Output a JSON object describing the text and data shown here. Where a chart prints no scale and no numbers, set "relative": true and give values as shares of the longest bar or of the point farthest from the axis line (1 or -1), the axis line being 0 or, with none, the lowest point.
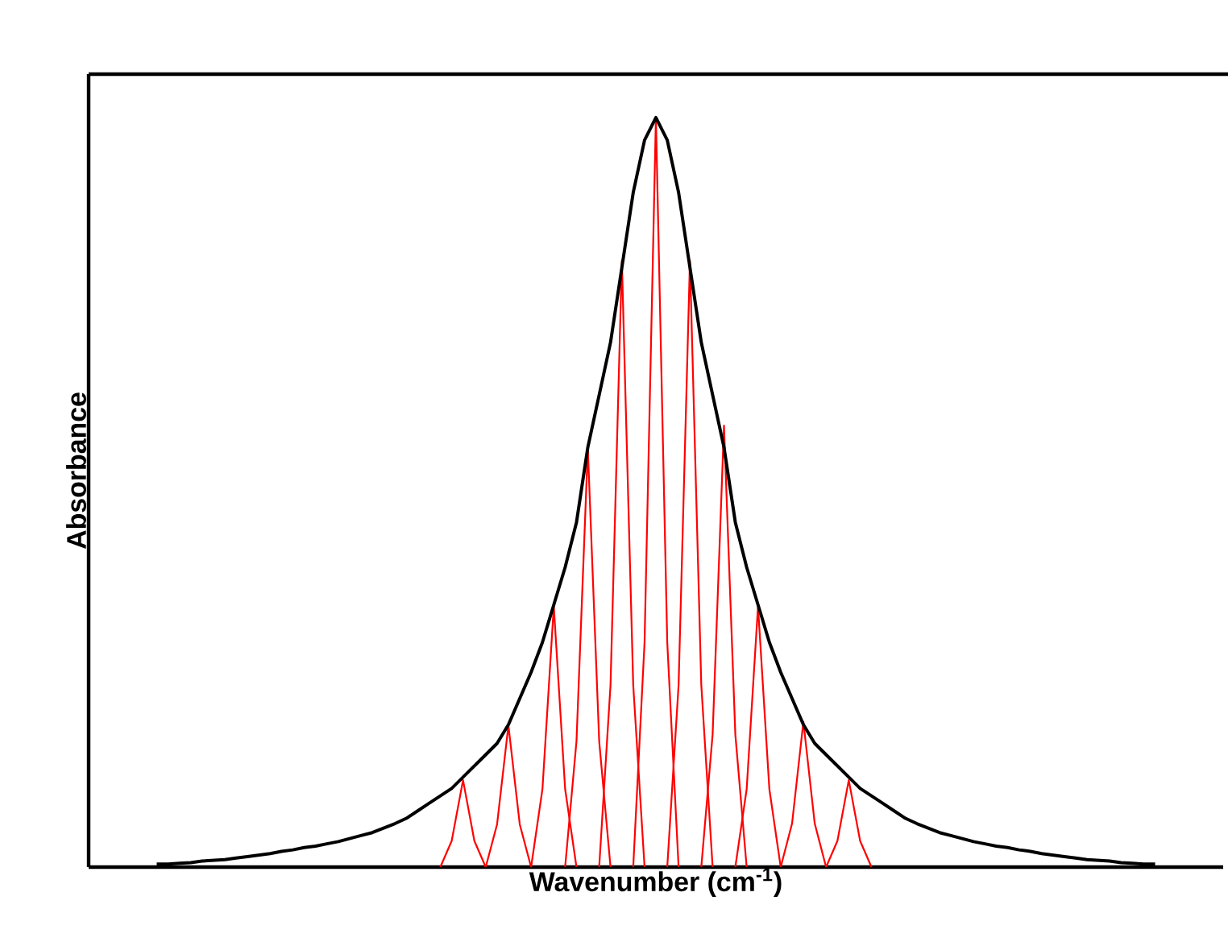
{
  "chart_data": {
    "type": "line",
    "relative": true,
    "xlabel": "Wavenumber (cm$^{-1}$)",
    "ylabel": "Absorbance",
    "categories": [
      null,
      null,
      null,
      null,
      null,
      null,
      null,
      null,
      null,
      null,
      null,
      null,
      null,
      null,
      null,
      null,
      null,
      null,
      null,
      null,
      null,
      null,
      null,
      null,
      null,
      null,
      null,
      null,
      null,
      null,
      null,
      null,
      null,
      null,
      null,
      null,
      null,
      null,
      null,
      null,
      null,
      null,
      null,
      null,
      null,
      null,
      null,
      null,
      null,
      null,
      null,
      null,
      null,
      null,
      null,
      null,
      null,
      null,
      null,
      null,
      null,
      null,
      null,
      null,
      null,
      null,
      null,
      null,
      null,
      null,
      null,
      null,
      null,
      null,
      null,
      null,
      null,
      null,
      null,
      null,
      null,
      null,
      null,
      null,
      null,
      null,
      null,
      null,
      null,
      null,
      null,
      null,
      null,
      null,
      null,
      null,
      null,
      null,
      null,
      null,
      null
    ],
    "series": [
      {
        "color": "#ff0000",
        "values": [
          null,
          null,
          null,
          null,
          null,
          null,
          null,
          null,
          null,
          null,
          null,
          null,
          null,
          null,
          null,
          null,
          null,
          null,
          null,
          null,
          null,
          null,
          null,
          null,
          null,
          null,
          null,
          null,
          null,
          null,
          null,
          0,
          0.035,
          0.116,
          0.035,
          0,
          null,
          null,
          null,
          null,
          null,
          null,
          null,
          null,
          null,
          null,
          null,
          null,
          null,
          null,
          null,
          null,
          null,
          null,
          null,
          null,
          null,
          null,
          null,
          null,
          null,
          null,
          null,
          null,
          null,
          null,
          null,
          null,
          null,
          null,
          null,
          null,
          null,
          null,
          null,
          null,
          null,
          null,
          null,
          null,
          null,
          null,
          null,
          null,
          null,
          null,
          null,
          null,
          null,
          null,
          null,
          null,
          null,
          null,
          null,
          null,
          null,
          null,
          null,
          null,
          null
        ]
      },
      {
        "color": "#ff0000",
        "values": [
          null,
          null,
          null,
          null,
          null,
          null,
          null,
          null,
          null,
          null,
          null,
          null,
          null,
          null,
          null,
          null,
          null,
          null,
          null,
          null,
          null,
          null,
          null,
          null,
          null,
          null,
          null,
          null,
          null,
          null,
          null,
          null,
          null,
          null,
          null,
          0,
          0.057,
          0.189,
          0.057,
          0,
          null,
          null,
          null,
          null,
          null,
          null,
          null,
          null,
          null,
          null,
          null,
          null,
          null,
          null,
          null,
          null,
          null,
          null,
          null,
          null,
          null,
          null,
          null,
          null,
          null,
          null,
          null,
          null,
          null,
          null,
          null,
          null,
          null,
          null,
          null,
          null,
          null,
          null,
          null,
          null,
          null,
          null,
          null,
          null,
          null,
          null,
          null,
          null,
          null,
          null,
          null,
          null,
          null,
          null,
          null,
          null,
          null,
          null,
          null,
          null,
          null
        ]
      },
      {
        "color": "#ff0000",
        "values": [
          null,
          null,
          null,
          null,
          null,
          null,
          null,
          null,
          null,
          null,
          null,
          null,
          null,
          null,
          null,
          null,
          null,
          null,
          null,
          null,
          null,
          null,
          null,
          null,
          null,
          null,
          null,
          null,
          null,
          null,
          null,
          null,
          null,
          null,
          null,
          null,
          null,
          null,
          null,
          0,
          0.104,
          0.348,
          0.104,
          0,
          null,
          null,
          null,
          null,
          null,
          null,
          null,
          null,
          null,
          null,
          null,
          null,
          null,
          null,
          null,
          null,
          null,
          null,
          null,
          null,
          null,
          null,
          null,
          null,
          null,
          null,
          null,
          null,
          null,
          null,
          null,
          null,
          null,
          null,
          null,
          null,
          null,
          null,
          null,
          null,
          null,
          null,
          null,
          null,
          null,
          null,
          null,
          null,
          null,
          null,
          null,
          null,
          null,
          null,
          null,
          null,
          null
        ]
      },
      {
        "color": "#ff0000",
        "values": [
          null,
          null,
          null,
          null,
          null,
          null,
          null,
          null,
          null,
          null,
          null,
          null,
          null,
          null,
          null,
          null,
          null,
          null,
          null,
          null,
          null,
          null,
          null,
          null,
          null,
          null,
          null,
          null,
          null,
          null,
          null,
          null,
          null,
          null,
          null,
          null,
          null,
          null,
          null,
          null,
          null,
          null,
          0,
          0.168,
          0.559,
          0.168,
          0,
          null,
          null,
          null,
          null,
          null,
          null,
          null,
          null,
          null,
          null,
          null,
          null,
          null,
          null,
          null,
          null,
          null,
          null,
          null,
          null,
          null,
          null,
          null,
          null,
          null,
          null,
          null,
          null,
          null,
          null,
          null,
          null,
          null,
          null,
          null,
          null,
          null,
          null,
          null,
          null,
          null,
          null,
          null,
          null,
          null,
          null,
          null,
          null,
          null,
          null,
          null,
          null,
          null,
          null
        ]
      },
      {
        "color": "#ff0000",
        "values": [
          null,
          null,
          null,
          null,
          null,
          null,
          null,
          null,
          null,
          null,
          null,
          null,
          null,
          null,
          null,
          null,
          null,
          null,
          null,
          null,
          null,
          null,
          null,
          null,
          null,
          null,
          null,
          null,
          null,
          null,
          null,
          null,
          null,
          null,
          null,
          null,
          null,
          null,
          null,
          null,
          null,
          null,
          null,
          null,
          null,
          0,
          0.243,
          0.809,
          0.243,
          0,
          null,
          null,
          null,
          null,
          null,
          null,
          null,
          null,
          null,
          null,
          null,
          null,
          null,
          null,
          null,
          null,
          null,
          null,
          null,
          null,
          null,
          null,
          null,
          null,
          null,
          null,
          null,
          null,
          null,
          null,
          null,
          null,
          null,
          null,
          null,
          null,
          null,
          null,
          null,
          null,
          null,
          null,
          null,
          null,
          null,
          null,
          null,
          null,
          null,
          null,
          null
        ]
      },
      {
        "color": "#ff0000",
        "values": [
          null,
          null,
          null,
          null,
          null,
          null,
          null,
          null,
          null,
          null,
          null,
          null,
          null,
          null,
          null,
          null,
          null,
          null,
          null,
          null,
          null,
          null,
          null,
          null,
          null,
          null,
          null,
          null,
          null,
          null,
          null,
          null,
          null,
          null,
          null,
          null,
          null,
          null,
          null,
          null,
          null,
          null,
          null,
          null,
          null,
          null,
          null,
          null,
          0,
          0.3,
          1,
          0.3,
          0,
          null,
          null,
          null,
          null,
          null,
          null,
          null,
          null,
          null,
          null,
          null,
          null,
          null,
          null,
          null,
          null,
          null,
          null,
          null,
          null,
          null,
          null,
          null,
          null,
          null,
          null,
          null,
          null,
          null,
          null,
          null,
          null,
          null,
          null,
          null,
          null,
          null,
          null,
          null,
          null,
          null,
          null,
          null,
          null,
          null,
          null,
          null,
          null
        ]
      },
      {
        "color": "#ff0000",
        "values": [
          null,
          null,
          null,
          null,
          null,
          null,
          null,
          null,
          null,
          null,
          null,
          null,
          null,
          null,
          null,
          null,
          null,
          null,
          null,
          null,
          null,
          null,
          null,
          null,
          null,
          null,
          null,
          null,
          null,
          null,
          null,
          null,
          null,
          null,
          null,
          null,
          null,
          null,
          null,
          null,
          null,
          null,
          null,
          null,
          null,
          null,
          null,
          null,
          null,
          null,
          null,
          0,
          0.243,
          0.809,
          0.243,
          0,
          null,
          null,
          null,
          null,
          null,
          null,
          null,
          null,
          null,
          null,
          null,
          null,
          null,
          null,
          null,
          null,
          null,
          null,
          null,
          null,
          null,
          null,
          null,
          null,
          null,
          null,
          null,
          null,
          null,
          null,
          null,
          null,
          null,
          null,
          null,
          null,
          null,
          null,
          null,
          null,
          null,
          null,
          null,
          null,
          null
        ]
      },
      {
        "color": "#ff0000",
        "values": [
          null,
          null,
          null,
          null,
          null,
          null,
          null,
          null,
          null,
          null,
          null,
          null,
          null,
          null,
          null,
          null,
          null,
          null,
          null,
          null,
          null,
          null,
          null,
          null,
          null,
          null,
          null,
          null,
          null,
          null,
          null,
          null,
          null,
          null,
          null,
          null,
          null,
          null,
          null,
          null,
          null,
          null,
          null,
          null,
          null,
          null,
          null,
          null,
          null,
          null,
          null,
          null,
          null,
          null,
          0,
          0.177,
          0.589,
          0.177,
          0,
          null,
          null,
          null,
          null,
          null,
          null,
          null,
          null,
          null,
          null,
          null,
          null,
          null,
          null,
          null,
          null,
          null,
          null,
          null,
          null,
          null,
          null,
          null,
          null,
          null,
          null,
          null,
          null,
          null,
          null,
          null,
          null,
          null,
          null,
          null,
          null,
          null,
          null,
          null,
          null,
          null,
          null
        ]
      },
      {
        "color": "#ff0000",
        "values": [
          null,
          null,
          null,
          null,
          null,
          null,
          null,
          null,
          null,
          null,
          null,
          null,
          null,
          null,
          null,
          null,
          null,
          null,
          null,
          null,
          null,
          null,
          null,
          null,
          null,
          null,
          null,
          null,
          null,
          null,
          null,
          null,
          null,
          null,
          null,
          null,
          null,
          null,
          null,
          null,
          null,
          null,
          null,
          null,
          null,
          null,
          null,
          null,
          null,
          null,
          null,
          null,
          null,
          null,
          null,
          null,
          null,
          0,
          0.104,
          0.348,
          0.104,
          0,
          null,
          null,
          null,
          null,
          null,
          null,
          null,
          null,
          null,
          null,
          null,
          null,
          null,
          null,
          null,
          null,
          null,
          null,
          null,
          null,
          null,
          null,
          null,
          null,
          null,
          null,
          null,
          null,
          null,
          null,
          null,
          null,
          null,
          null,
          null,
          null,
          null,
          null,
          null
        ]
      },
      {
        "color": "#ff0000",
        "values": [
          null,
          null,
          null,
          null,
          null,
          null,
          null,
          null,
          null,
          null,
          null,
          null,
          null,
          null,
          null,
          null,
          null,
          null,
          null,
          null,
          null,
          null,
          null,
          null,
          null,
          null,
          null,
          null,
          null,
          null,
          null,
          null,
          null,
          null,
          null,
          null,
          null,
          null,
          null,
          null,
          null,
          null,
          null,
          null,
          null,
          null,
          null,
          null,
          null,
          null,
          null,
          null,
          null,
          null,
          null,
          null,
          null,
          null,
          null,
          null,
          null,
          0,
          0.058,
          0.194,
          0.058,
          0,
          null,
          null,
          null,
          null,
          null,
          null,
          null,
          null,
          null,
          null,
          null,
          null,
          null,
          null,
          null,
          null,
          null,
          null,
          null,
          null,
          null,
          null,
          null,
          null,
          null,
          null,
          null,
          null,
          null,
          null,
          null,
          null,
          null,
          null,
          null
        ]
      },
      {
        "color": "#ff0000",
        "values": [
          null,
          null,
          null,
          null,
          null,
          null,
          null,
          null,
          null,
          null,
          null,
          null,
          null,
          null,
          null,
          null,
          null,
          null,
          null,
          null,
          null,
          null,
          null,
          null,
          null,
          null,
          null,
          null,
          null,
          null,
          null,
          null,
          null,
          null,
          null,
          null,
          null,
          null,
          null,
          null,
          null,
          null,
          null,
          null,
          null,
          null,
          null,
          null,
          null,
          null,
          null,
          null,
          null,
          null,
          null,
          null,
          null,
          null,
          null,
          null,
          null,
          null,
          null,
          null,
          null,
          0,
          0.035,
          0.116,
          0.035,
          0,
          null,
          null,
          null,
          null,
          null,
          null,
          null,
          null,
          null,
          null,
          null,
          null,
          null,
          null,
          null,
          null,
          null,
          null,
          null,
          null,
          null,
          null,
          null,
          null,
          null,
          null,
          null,
          null,
          null,
          null,
          null
        ]
      },
      {
        "color": "#000000",
        "values": [
          null,
          null,
          null,
          null,
          null,
          null,
          0.004,
          0.004,
          0.005,
          0.006,
          0.008,
          0.009,
          0.01,
          0.012,
          0.014,
          0.016,
          0.018,
          0.021,
          0.023,
          0.026,
          0.028,
          0.031,
          0.034,
          0.038,
          0.042,
          0.046,
          0.052,
          0.058,
          0.065,
          0.075,
          0.085,
          0.095,
          0.105,
          0.12,
          0.135,
          0.15,
          0.165,
          0.19,
          0.225,
          0.26,
          0.3,
          0.35,
          0.4,
          0.46,
          0.56,
          0.63,
          0.7,
          0.8,
          0.9,
          0.97,
          1,
          0.97,
          0.9,
          0.8,
          0.7,
          0.63,
          0.56,
          0.46,
          0.4,
          0.35,
          0.3,
          0.26,
          0.225,
          0.19,
          0.165,
          0.15,
          0.135,
          0.12,
          0.105,
          0.095,
          0.085,
          0.075,
          0.065,
          0.058,
          0.052,
          0.046,
          0.042,
          0.038,
          0.034,
          0.031,
          0.028,
          0.026,
          0.023,
          0.021,
          0.018,
          0.016,
          0.014,
          0.012,
          0.01,
          0.009,
          0.008,
          0.006,
          0.005,
          0.004,
          0.004,
          null,
          null,
          null,
          null,
          null,
          null
        ]
      }
    ]
  }
}
